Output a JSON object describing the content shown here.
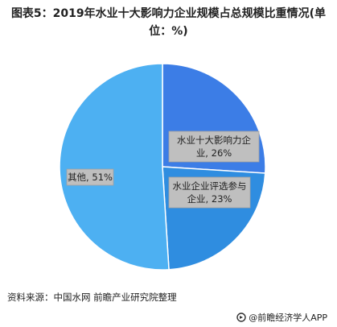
{
  "title": "图表5：2019年水业十大影响力企业规模占总规模比重情况(单位：%)",
  "chart_data": {
    "type": "pie",
    "slices": [
      {
        "label": "水业十大影响力企业",
        "value": 26,
        "value_text": "26%",
        "color": "#3c7de6"
      },
      {
        "label": "水业企业评选参与企业",
        "value": 23,
        "value_text": "23%",
        "color": "#2f8de0"
      },
      {
        "label": "其他",
        "value": 51,
        "value_text": "51%",
        "color": "#4db0f2"
      }
    ]
  },
  "labels": [
    {
      "line1": "水业十大影响力企",
      "line2": "业, 26%"
    },
    {
      "line1": "水业企业评选参与",
      "line2": "企业, 23%"
    },
    {
      "line1": "其他, 51%",
      "line2": ""
    }
  ],
  "source": "资料来源：中国水网 前瞻产业研究院整理",
  "brand": "@前瞻经济学人APP"
}
